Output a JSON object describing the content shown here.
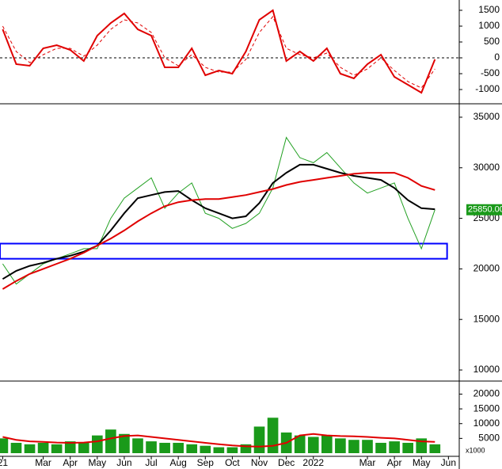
{
  "chart_data": [
    {
      "type": "line",
      "xlim": [
        0.4,
        17.4
      ],
      "ylim": [
        -1425,
        1825
      ],
      "yticks": [
        -1000,
        -500,
        0,
        500,
        1000,
        1500
      ],
      "zero_line": true,
      "x": [
        0.5,
        1,
        1.5,
        2,
        2.5,
        3,
        3.5,
        4,
        4.5,
        5,
        5.5,
        6,
        6.5,
        7,
        7.5,
        8,
        8.5,
        9,
        9.5,
        10,
        10.5,
        11,
        11.5,
        12,
        12.5,
        13,
        13.5,
        14,
        14.5,
        15,
        15.5,
        16,
        16.5
      ],
      "series": [
        {
          "color": "#e00000",
          "width": 2,
          "dash": false,
          "values": [
            900,
            -200,
            -250,
            300,
            400,
            250,
            -100,
            700,
            1100,
            1400,
            900,
            700,
            -300,
            -300,
            300,
            -550,
            -400,
            -500,
            200,
            1200,
            1500,
            -100,
            200,
            -100,
            300,
            -500,
            -650,
            -200,
            100,
            -600,
            -850,
            -1100,
            -50
          ]
        },
        {
          "color": "#e00000",
          "width": 1,
          "dash": true,
          "values": [
            1000,
            200,
            -150,
            100,
            300,
            300,
            50,
            400,
            900,
            1200,
            1100,
            800,
            0,
            -250,
            100,
            -300,
            -450,
            -450,
            -50,
            800,
            1300,
            300,
            100,
            0,
            150,
            -300,
            -550,
            -350,
            0,
            -400,
            -750,
            -950,
            -350
          ]
        }
      ]
    },
    {
      "type": "line",
      "xlim": [
        0.4,
        17.4
      ],
      "ylim": [
        9140,
        36250
      ],
      "yticks": [
        10000,
        15000,
        20000,
        25000,
        30000,
        35000
      ],
      "x": [
        0.5,
        1,
        1.5,
        2,
        2.5,
        3,
        3.5,
        4,
        4.5,
        5,
        5.5,
        6,
        6.5,
        7,
        7.5,
        8,
        8.5,
        9,
        9.5,
        10,
        10.5,
        11,
        11.5,
        12,
        12.5,
        13,
        13.5,
        14,
        14.5,
        15,
        15.5,
        16,
        16.5
      ],
      "series": [
        {
          "color": "#22a022",
          "width": 1,
          "dash": false,
          "values": [
            20500,
            18500,
            19500,
            20500,
            21000,
            21500,
            22000,
            22000,
            25000,
            27000,
            28000,
            29000,
            26000,
            27500,
            28500,
            25500,
            25000,
            24000,
            24500,
            25500,
            28000,
            33000,
            31000,
            30500,
            31500,
            30000,
            28500,
            27500,
            28000,
            28500,
            25000,
            22000,
            25850
          ]
        },
        {
          "color": "#000000",
          "width": 2,
          "dash": false,
          "values": [
            19000,
            19800,
            20300,
            20600,
            21000,
            21300,
            21700,
            22300,
            23800,
            25500,
            27000,
            27300,
            27600,
            27700,
            26800,
            26000,
            25500,
            25000,
            25200,
            26500,
            28500,
            29500,
            30300,
            30300,
            29900,
            29500,
            29200,
            29000,
            28800,
            28000,
            26800,
            26000,
            25900
          ]
        },
        {
          "color": "#e00000",
          "width": 2,
          "dash": false,
          "values": [
            18000,
            18800,
            19500,
            20000,
            20500,
            21000,
            21600,
            22300,
            23000,
            23800,
            24700,
            25500,
            26200,
            26600,
            26800,
            26900,
            26900,
            27100,
            27300,
            27600,
            27900,
            28300,
            28600,
            28800,
            29000,
            29200,
            29400,
            29500,
            29500,
            29500,
            29000,
            28200,
            27800
          ]
        }
      ],
      "band": {
        "from": 21000,
        "to": 22500,
        "x_range": [
          0.4,
          16.95
        ],
        "color": "#0000ff"
      },
      "last_value": 25850,
      "last_value_label": "25850.00"
    },
    {
      "type": "bar",
      "xlim": [
        0.4,
        17.4
      ],
      "ylim": [
        0,
        22000
      ],
      "yticks": [
        5000,
        10000,
        15000,
        20000
      ],
      "unit": "x1000",
      "x": [
        0.5,
        1,
        1.5,
        2,
        2.5,
        3,
        3.5,
        4,
        4.5,
        5,
        5.5,
        6,
        6.5,
        7,
        7.5,
        8,
        8.5,
        9,
        9.5,
        10,
        10.5,
        11,
        11.5,
        12,
        12.5,
        13,
        13.5,
        14,
        14.5,
        15,
        15.5,
        16,
        16.5
      ],
      "xticks": [
        {
          "value": 0.5,
          "label": "21"
        },
        {
          "value": 2,
          "label": "Mar"
        },
        {
          "value": 3,
          "label": "Apr"
        },
        {
          "value": 4,
          "label": "May"
        },
        {
          "value": 5,
          "label": "Jun"
        },
        {
          "value": 6,
          "label": "Jul"
        },
        {
          "value": 7,
          "label": "Aug"
        },
        {
          "value": 8,
          "label": "Sep"
        },
        {
          "value": 9,
          "label": "Oct"
        },
        {
          "value": 10,
          "label": "Nov"
        },
        {
          "value": 11,
          "label": "Dec"
        },
        {
          "value": 12,
          "label": "2022"
        },
        {
          "value": 14,
          "label": "Mar"
        },
        {
          "value": 15,
          "label": "Apr"
        },
        {
          "value": 16,
          "label": "May"
        },
        {
          "value": 17,
          "label": "Jun"
        }
      ],
      "series": [
        {
          "type": "bar",
          "color": "#1a9a1a",
          "values": [
            5000,
            3500,
            3000,
            3500,
            3000,
            4000,
            3500,
            6000,
            8000,
            6500,
            5000,
            4000,
            3500,
            3500,
            3000,
            2500,
            2000,
            2000,
            3000,
            9000,
            12000,
            7000,
            6000,
            5500,
            6000,
            5000,
            4500,
            4500,
            3500,
            4000,
            3500,
            5000,
            3000
          ]
        },
        {
          "type": "line",
          "color": "#e00000",
          "width": 2,
          "values": [
            5500,
            4500,
            4000,
            3800,
            3600,
            3500,
            3600,
            4000,
            5000,
            5800,
            6000,
            5500,
            5000,
            4500,
            4000,
            3500,
            3000,
            2600,
            2300,
            2200,
            2500,
            3500,
            6000,
            6500,
            6000,
            5800,
            5700,
            5500,
            5200,
            5000,
            4500,
            4000,
            3800
          ]
        }
      ]
    }
  ]
}
